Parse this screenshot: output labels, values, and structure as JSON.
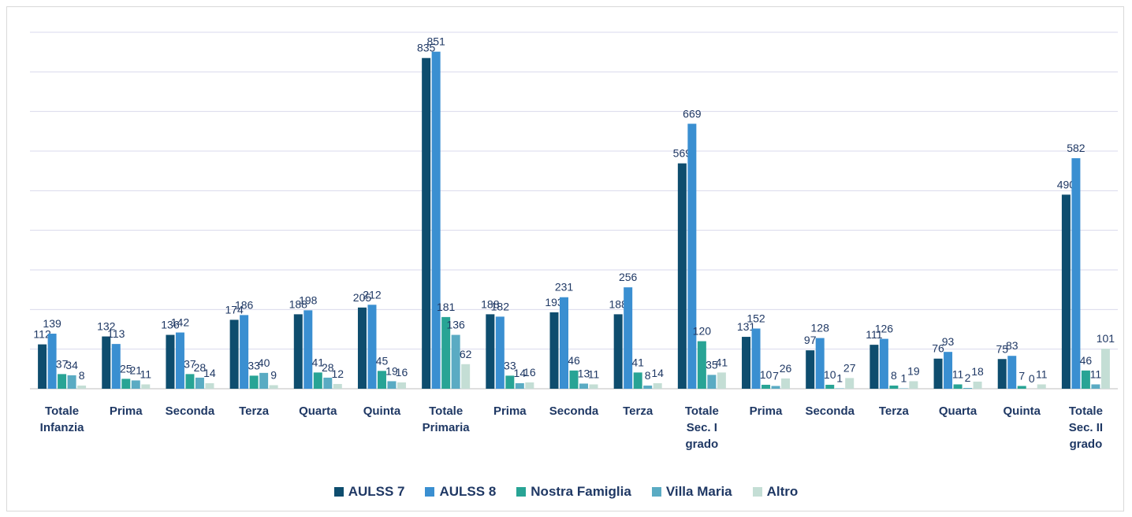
{
  "chart_data": {
    "type": "bar",
    "categories": [
      "Totale Infanzia",
      "Prima",
      "Seconda",
      "Terza",
      "Quarta",
      "Quinta",
      "Totale Primaria",
      "Prima",
      "Seconda",
      "Terza",
      "Totale Sec. I grado",
      "Prima",
      "Seconda",
      "Terza",
      "Quarta",
      "Quinta",
      "Totale Sec. II grado"
    ],
    "series": [
      {
        "name": "AULSS 7",
        "color": "#0e4d6e",
        "values": [
          112,
          132,
          136,
          174,
          188,
          205,
          835,
          188,
          193,
          188,
          569,
          131,
          97,
          111,
          76,
          75,
          490
        ]
      },
      {
        "name": "AULSS 8",
        "color": "#3a8fd1",
        "values": [
          139,
          113,
          142,
          186,
          198,
          212,
          851,
          182,
          231,
          256,
          669,
          152,
          128,
          126,
          93,
          83,
          582
        ]
      },
      {
        "name": "Nostra Famiglia",
        "color": "#28a495",
        "values": [
          37,
          25,
          37,
          33,
          41,
          45,
          181,
          33,
          46,
          41,
          120,
          10,
          10,
          8,
          11,
          7,
          46
        ]
      },
      {
        "name": "Villa Maria",
        "color": "#5aabc3",
        "values": [
          34,
          21,
          28,
          40,
          28,
          19,
          136,
          14,
          13,
          8,
          35,
          7,
          1,
          1,
          2,
          0,
          11
        ]
      },
      {
        "name": "Altro",
        "color": "#c4ded5",
        "values": [
          8,
          11,
          14,
          9,
          12,
          16,
          62,
          16,
          11,
          14,
          41,
          26,
          27,
          19,
          18,
          11,
          101
        ]
      }
    ],
    "ylim": [
      0,
      900
    ],
    "yticks": [
      0,
      100,
      200,
      300,
      400,
      500,
      600,
      700,
      800,
      900
    ],
    "grid": true
  }
}
